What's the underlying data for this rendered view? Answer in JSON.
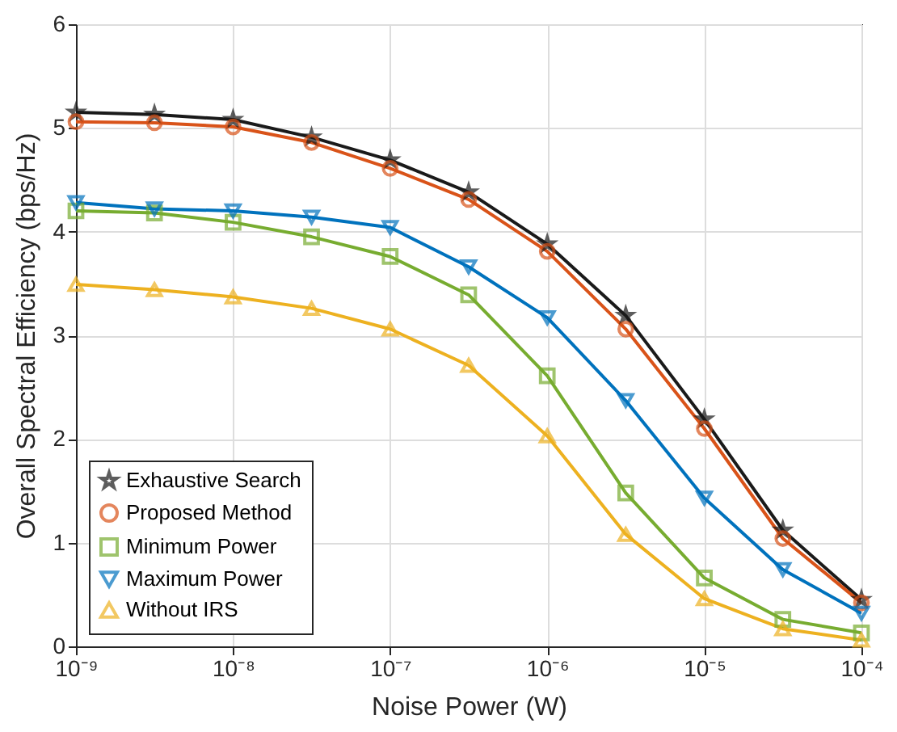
{
  "chart_data": {
    "type": "line",
    "xlabel": "Noise Power (W)",
    "ylabel": "Overall Spectral Efficiency (bps/Hz)",
    "log": "x",
    "x": [
      1e-09,
      3.16e-09,
      1e-08,
      3.16e-08,
      1e-07,
      3.16e-07,
      1e-06,
      3.16e-06,
      1e-05,
      3.16e-05,
      0.0001
    ],
    "xlim": [
      1e-09,
      0.0001
    ],
    "xticks": [
      {
        "value": 1e-09,
        "label": "10⁻⁹"
      },
      {
        "value": 1e-08,
        "label": "10⁻⁸"
      },
      {
        "value": 1e-07,
        "label": "10⁻⁷"
      },
      {
        "value": 1e-06,
        "label": "10⁻⁶"
      },
      {
        "value": 1e-05,
        "label": "10⁻⁵"
      },
      {
        "value": 0.0001,
        "label": "10⁻⁴"
      }
    ],
    "ylim": [
      0,
      6
    ],
    "yticks": [
      0,
      1,
      2,
      3,
      4,
      5,
      6
    ],
    "grid": true,
    "legend": "bottom left",
    "line_style": "solid",
    "series": [
      {
        "name": "Exhaustive Search",
        "color": "#1a1a1a",
        "marker": "star",
        "values": [
          5.15,
          5.13,
          5.08,
          4.91,
          4.69,
          4.38,
          3.88,
          3.19,
          2.19,
          1.12,
          0.45
        ]
      },
      {
        "name": "Proposed Method",
        "color": "#d95319",
        "marker": "circle",
        "values": [
          5.06,
          5.05,
          5.01,
          4.86,
          4.61,
          4.31,
          3.81,
          3.06,
          2.1,
          1.04,
          0.42
        ]
      },
      {
        "name": "Minimum Power",
        "color": "#77ac30",
        "marker": "square",
        "values": [
          4.2,
          4.18,
          4.09,
          3.95,
          3.76,
          3.39,
          2.61,
          1.48,
          0.66,
          0.26,
          0.13
        ]
      },
      {
        "name": "Maximum Power",
        "color": "#0072bd",
        "marker": "triangle-down",
        "values": [
          4.28,
          4.22,
          4.2,
          4.14,
          4.04,
          3.66,
          3.17,
          2.37,
          1.43,
          0.74,
          0.32
        ]
      },
      {
        "name": "Without IRS",
        "color": "#edb120",
        "marker": "triangle",
        "values": [
          3.49,
          3.44,
          3.37,
          3.26,
          3.06,
          2.71,
          2.03,
          1.08,
          0.46,
          0.17,
          0.06
        ]
      }
    ]
  }
}
